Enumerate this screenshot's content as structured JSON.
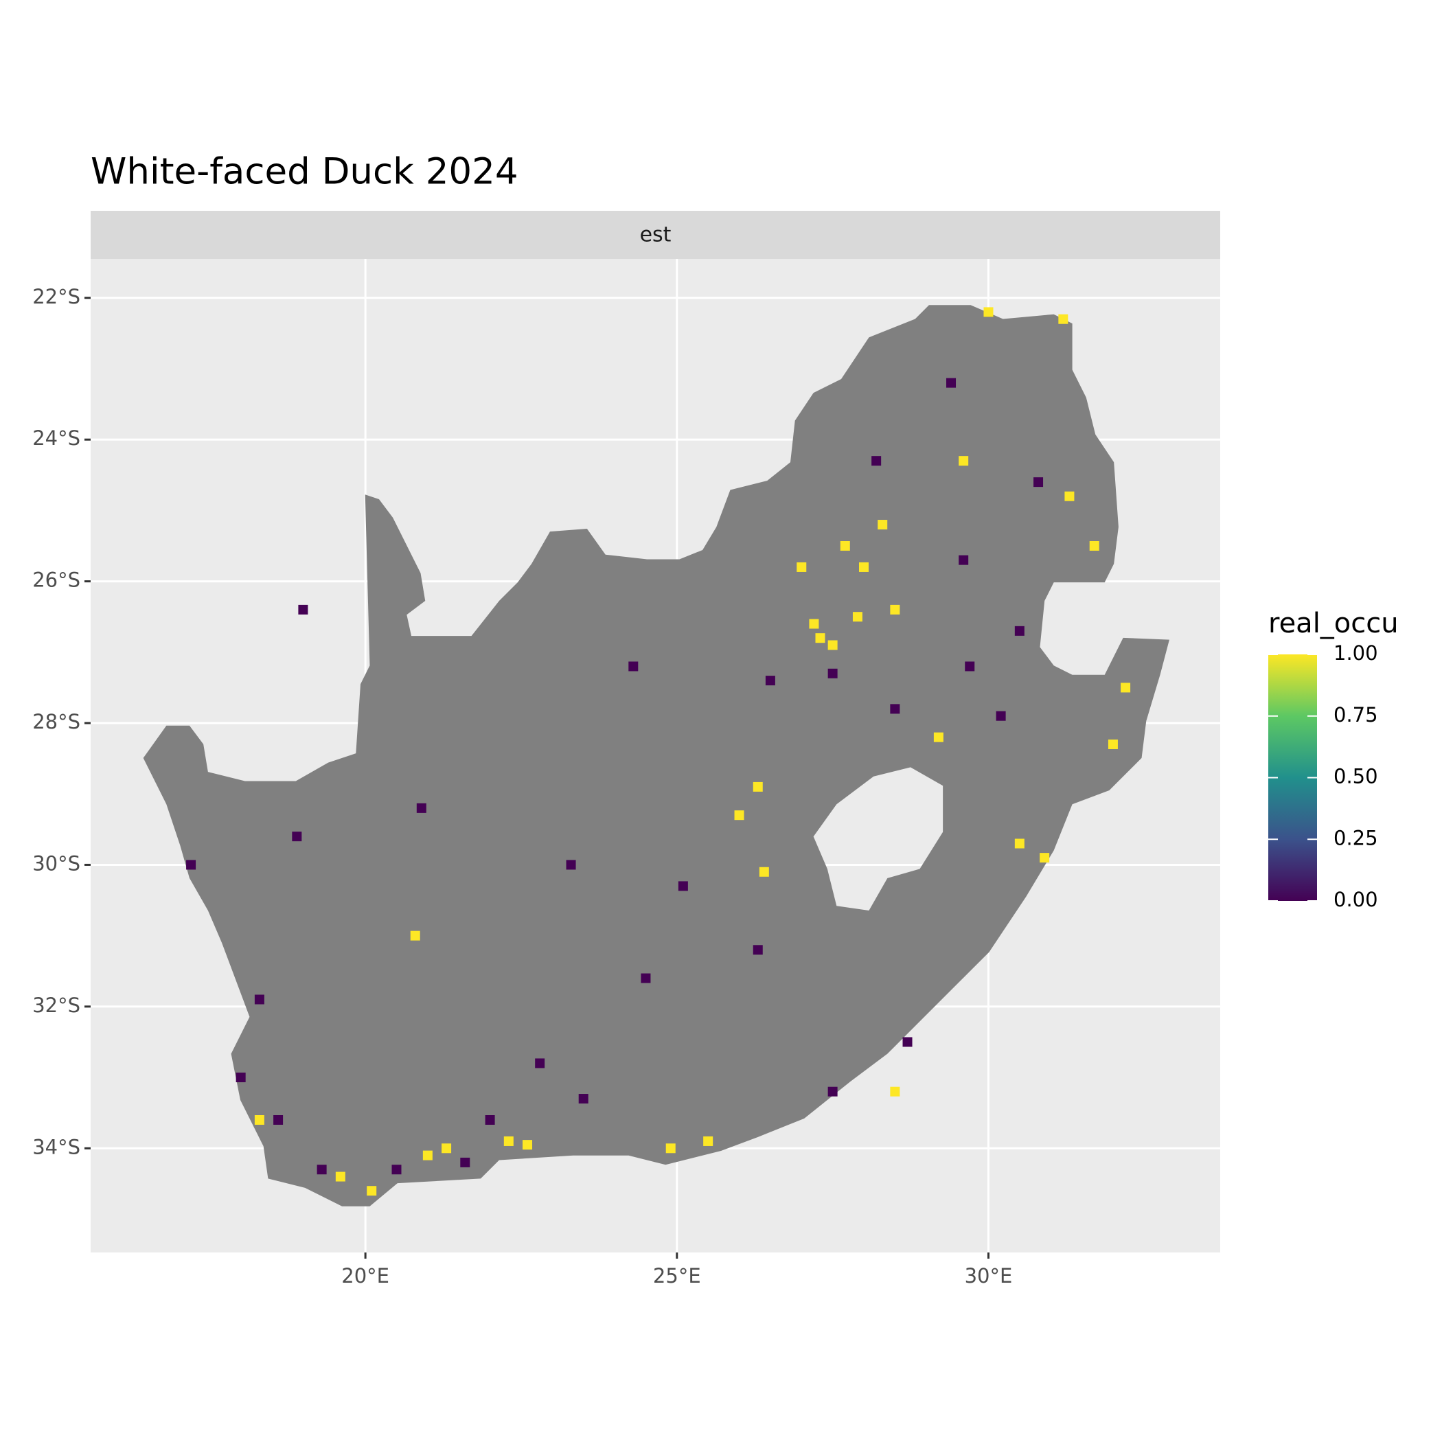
{
  "chart_data": {
    "type": "tile",
    "title": "White-faced Duck 2024",
    "facet": "est",
    "xlim": [
      15.59,
      33.72
    ],
    "ylim": [
      -35.47,
      -21.45
    ],
    "xticks": [
      {
        "value": 20,
        "label": "20°E"
      },
      {
        "value": 25,
        "label": "25°E"
      },
      {
        "value": 30,
        "label": "30°E"
      }
    ],
    "yticks": [
      {
        "value": -22,
        "label": "22°S"
      },
      {
        "value": -24,
        "label": "24°S"
      },
      {
        "value": -26,
        "label": "26°S"
      },
      {
        "value": -28,
        "label": "28°S"
      },
      {
        "value": -30,
        "label": "30°S"
      },
      {
        "value": -32,
        "label": "32°S"
      },
      {
        "value": -34,
        "label": "34°S"
      }
    ],
    "grid": true,
    "legend": {
      "title": "real_occu",
      "position": "right",
      "limits": [
        0,
        1
      ],
      "colors": [
        "#440154",
        "#3b528b",
        "#21908c",
        "#5dc863",
        "#fde725"
      ],
      "ticks": [
        {
          "value": 0,
          "label": "0.00"
        },
        {
          "value": 0.25,
          "label": "0.25"
        },
        {
          "value": 0.5,
          "label": "0.50"
        },
        {
          "value": 0.75,
          "label": "0.75"
        },
        {
          "value": 1,
          "label": "1.00"
        }
      ]
    },
    "cells": {
      "lon": [
        27.3,
        27.5,
        27.2,
        27.9,
        28.0,
        27.7,
        28.3,
        27.0,
        28.5,
        29.6,
        31.3,
        31.7,
        32.0,
        32.2,
        30.5,
        30.9,
        26.4,
        26.0,
        26.3,
        20.1,
        19.6,
        21.0,
        21.3,
        22.3,
        22.6,
        24.9,
        25.5,
        18.3,
        20.8,
        29.2,
        28.5,
        31.2,
        30.0,
        18.0,
        18.6,
        19.3,
        20.5,
        21.6,
        22.0,
        23.5,
        24.5,
        25.1,
        26.5,
        27.5,
        28.5,
        29.7,
        30.2,
        30.5,
        29.6,
        30.8,
        29.4,
        28.2,
        17.2,
        18.9,
        20.9,
        23.3,
        19.0,
        24.3,
        26.3,
        28.7,
        18.3,
        22.8,
        27.5
      ],
      "lat": [
        -26.8,
        -26.9,
        -26.6,
        -26.5,
        -25.8,
        -25.5,
        -25.2,
        -25.8,
        -26.4,
        -24.3,
        -24.8,
        -25.5,
        -28.3,
        -27.5,
        -29.7,
        -29.9,
        -30.1,
        -29.3,
        -28.9,
        -34.6,
        -34.4,
        -34.1,
        -34.0,
        -33.9,
        -33.95,
        -34.0,
        -33.9,
        -33.6,
        -31.0,
        -28.2,
        -33.2,
        -22.3,
        -22.2,
        -33.0,
        -33.6,
        -34.3,
        -34.3,
        -34.2,
        -33.6,
        -33.3,
        -31.6,
        -30.3,
        -27.4,
        -27.3,
        -27.8,
        -27.2,
        -27.9,
        -26.7,
        -25.7,
        -24.6,
        -23.2,
        -24.3,
        -30.0,
        -29.6,
        -29.2,
        -30.0,
        -26.4,
        -27.2,
        -31.2,
        -32.5,
        -31.9,
        -32.8,
        -33.2
      ],
      "values": [
        1,
        1,
        1,
        1,
        1,
        1,
        1,
        1,
        1,
        1,
        1,
        1,
        1,
        1,
        1,
        1,
        1,
        1,
        1,
        1,
        1,
        1,
        1,
        1,
        1,
        1,
        1,
        1,
        1,
        1,
        1,
        1,
        1,
        0,
        0,
        0,
        0,
        0,
        0,
        0,
        0,
        0,
        0,
        0,
        0,
        0,
        0,
        0,
        0,
        0,
        0,
        0,
        0,
        0,
        0,
        0,
        0,
        0,
        0,
        0,
        0,
        0,
        0
      ]
    }
  }
}
